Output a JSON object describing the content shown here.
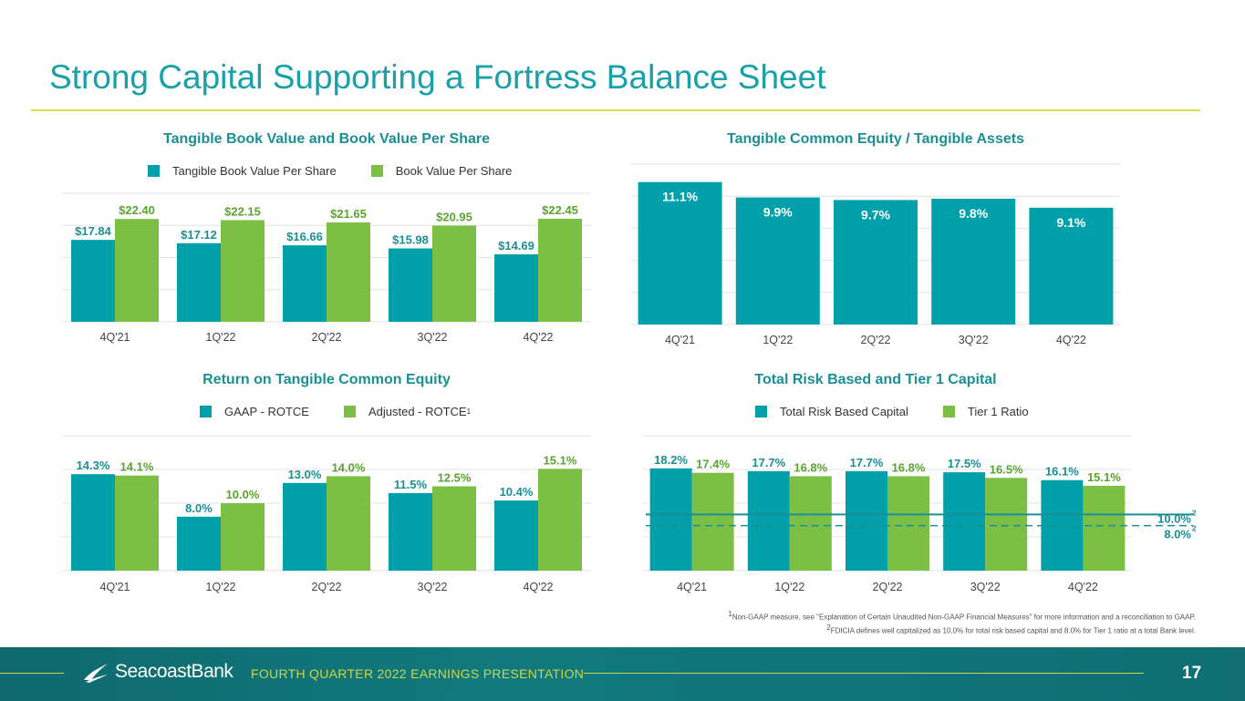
{
  "page": {
    "title": "Strong Capital Supporting a Fortress Balance Sheet",
    "footer_text": "FOURTH QUARTER 2022 EARNINGS PRESENTATION",
    "page_number": "17",
    "brand": "SeacoastBank",
    "footnote1_mark": "1",
    "footnote1": "Non-GAAP measure, see \"Explanation of Certain Unaudited Non-GAAP Financial Measures\" for more information and a reconciliation to GAAP.",
    "footnote2_mark": "2",
    "footnote2": "FDICIA defines well capitalized as 10.0% for total risk based capital and 8.0% for Tier 1 ratio at a total Bank level.",
    "colors": {
      "teal": "#00a0aa",
      "green": "#7bbf45",
      "label_teal": "#1a8f96",
      "label_green": "#5aa52f"
    }
  },
  "chart_data": [
    {
      "id": "tbv",
      "type": "bar",
      "title": "Tangible Book Value and Book Value Per Share",
      "categories": [
        "4Q'21",
        "1Q'22",
        "2Q'22",
        "3Q'22",
        "4Q'22"
      ],
      "series": [
        {
          "name": "Tangible Book Value Per Share",
          "values": [
            17.84,
            17.12,
            16.66,
            15.98,
            14.69
          ],
          "labels": [
            "$17.84",
            "$17.12",
            "$16.66",
            "$15.98",
            "$14.69"
          ],
          "color": "#00a0aa"
        },
        {
          "name": "Book Value Per Share",
          "values": [
            22.4,
            22.15,
            21.65,
            20.95,
            22.45
          ],
          "labels": [
            "$22.40",
            "$22.15",
            "$21.65",
            "$20.95",
            "$22.45"
          ],
          "color": "#7bbf45"
        }
      ],
      "ylim": [
        0,
        28
      ],
      "legend": "top",
      "grid": true
    },
    {
      "id": "tce",
      "type": "bar",
      "title": "Tangible Common Equity / Tangible Assets",
      "categories": [
        "4Q'21",
        "1Q'22",
        "2Q'22",
        "3Q'22",
        "4Q'22"
      ],
      "series": [
        {
          "values": [
            11.1,
            9.9,
            9.7,
            9.8,
            9.1
          ],
          "labels": [
            "11.1%",
            "9.9%",
            "9.7%",
            "9.8%",
            "9.1%"
          ],
          "color": "#00a0aa"
        }
      ],
      "ylim": [
        0,
        12.5
      ],
      "legend": "none",
      "grid": true
    },
    {
      "id": "rotce",
      "type": "bar",
      "title": "Return on Tangible Common Equity",
      "categories": [
        "4Q'21",
        "1Q'22",
        "2Q'22",
        "3Q'22",
        "4Q'22"
      ],
      "series": [
        {
          "name": "GAAP - ROTCE",
          "values": [
            14.3,
            8.0,
            13.0,
            11.5,
            10.4
          ],
          "labels": [
            "14.3%",
            "8.0%",
            "13.0%",
            "11.5%",
            "10.4%"
          ],
          "color": "#00a0aa"
        },
        {
          "name": "Adjusted - ROTCE",
          "values": [
            14.1,
            10.0,
            14.0,
            12.5,
            15.1
          ],
          "labels": [
            "14.1%",
            "10.0%",
            "14.0%",
            "12.5%",
            "15.1%"
          ],
          "color": "#7bbf45"
        }
      ],
      "ylim": [
        0,
        20
      ],
      "legend": "top",
      "grid": true
    },
    {
      "id": "capital",
      "type": "bar",
      "title": "Total Risk Based and Tier 1 Capital",
      "categories": [
        "4Q'21",
        "1Q'22",
        "2Q'22",
        "3Q'22",
        "4Q'22"
      ],
      "series": [
        {
          "name": "Total Risk Based Capital",
          "values": [
            18.2,
            17.7,
            17.7,
            17.5,
            16.1
          ],
          "labels": [
            "18.2%",
            "17.7%",
            "17.7%",
            "17.5%",
            "16.1%"
          ],
          "color": "#00a0aa"
        },
        {
          "name": "Tier 1 Ratio",
          "values": [
            17.4,
            16.8,
            16.8,
            16.5,
            15.1
          ],
          "labels": [
            "17.4%",
            "16.8%",
            "16.8%",
            "16.5%",
            "15.1%"
          ],
          "color": "#7bbf45"
        }
      ],
      "reference_lines": [
        {
          "value": 10.0,
          "label": "10.0%",
          "mark": "2",
          "style": "solid",
          "color": "#1a8f96"
        },
        {
          "value": 8.0,
          "label": "8.0%",
          "mark": "2",
          "style": "dashed",
          "color": "#1a8f96"
        }
      ],
      "ylim": [
        0,
        24
      ],
      "legend": "top",
      "grid": true
    }
  ]
}
